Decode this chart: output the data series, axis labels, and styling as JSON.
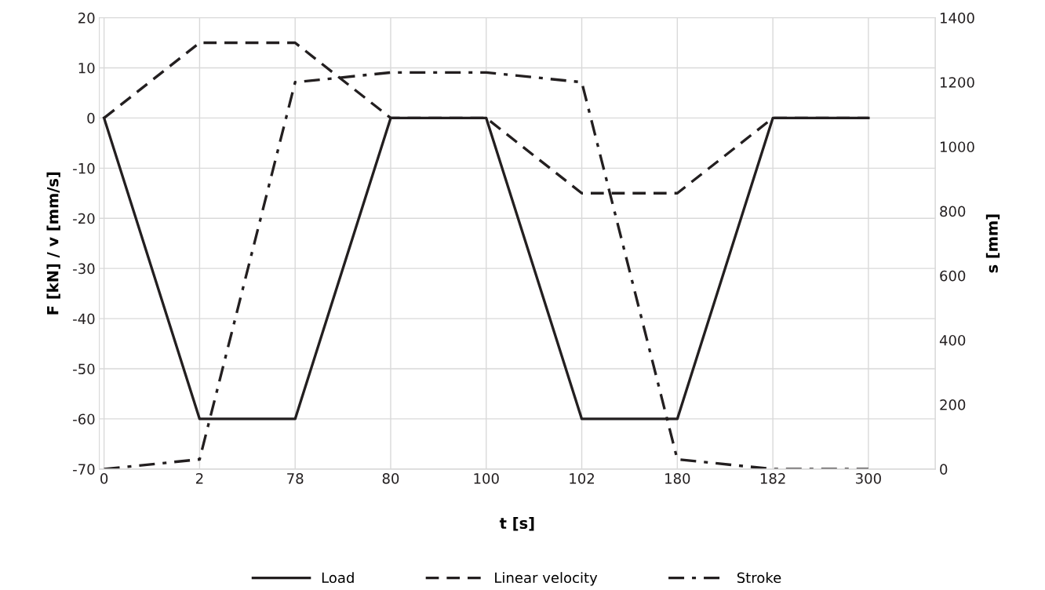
{
  "chart_data": {
    "type": "line",
    "xlabel": "t [s]",
    "ylabel": "F [kN] / v [mm/s]",
    "y2label": "s [mm]",
    "categories": [
      "0",
      "2",
      "78",
      "80",
      "100",
      "102",
      "180",
      "182",
      "300"
    ],
    "series": [
      {
        "name": "Load",
        "color": "#231f20",
        "line_style": "solid",
        "values": [
          0,
          -60,
          -60,
          0,
          0,
          -60,
          -60,
          0,
          0
        ]
      },
      {
        "name": "Linear velocity",
        "color": "#231f20",
        "line_style": "dashed",
        "values": [
          0,
          15,
          15,
          0,
          0,
          -15,
          -15,
          0,
          0
        ]
      },
      {
        "name": "Stroke",
        "color": "#231f20",
        "line_style": "dashdot",
        "axis": "y2",
        "values": [
          0,
          30,
          1200,
          1230,
          1230,
          1200,
          30,
          0,
          0
        ]
      }
    ],
    "ylim": [
      -70,
      20
    ],
    "yticks": [
      -70,
      -60,
      -50,
      -40,
      -30,
      -20,
      -10,
      0,
      10,
      20
    ],
    "y2lim": [
      0,
      1400
    ],
    "y2ticks": [
      0,
      200,
      400,
      600,
      800,
      1000,
      1200,
      1400
    ],
    "grid": true,
    "legend": "bottom",
    "marker": "none"
  }
}
